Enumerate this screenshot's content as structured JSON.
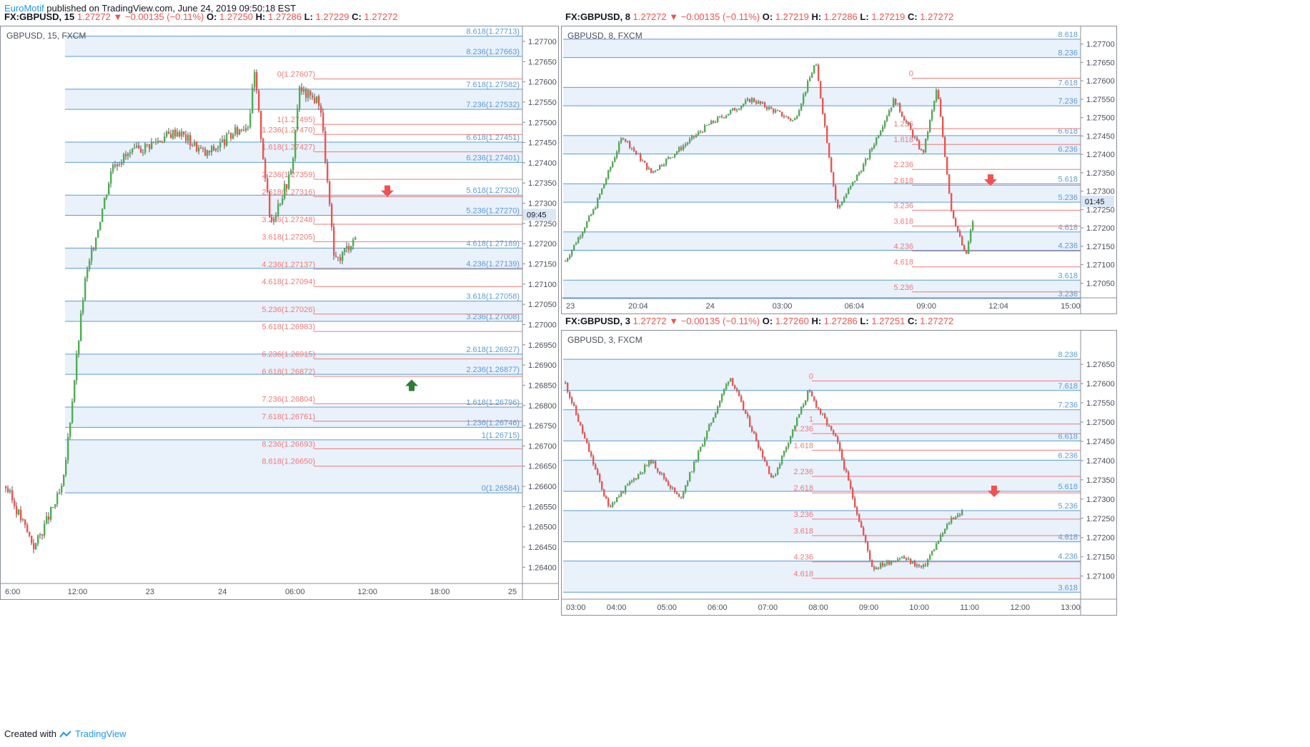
{
  "header": {
    "brand": "EuroMotif",
    "published": " published on TradingView.com, June 24, 2019 09:50:18 EST"
  },
  "footer": {
    "created_with": "Created with",
    "tradingview": "TradingView"
  },
  "colors": {
    "up": "#4caf50",
    "down": "#ef5350",
    "fib_blue": "#5b9bd5",
    "fib_red": "#ef7a78",
    "band": "#e9f1fb"
  },
  "charts": [
    {
      "id": "c15",
      "symbol": "FX:GBPUSD, 15",
      "price": "1.27272",
      "change": "−0.00135 (−0.11%)",
      "o": "1.27250",
      "h": "1.27286",
      "l": "1.27229",
      "c": "1.27272",
      "label": "GBPUSD, 15, FXCM",
      "countdown": "09:45",
      "ylim": [
        1.2636,
        1.2773
      ],
      "price_ticks": [
        "1.27700",
        "1.27650",
        "1.27600",
        "1.27550",
        "1.27500",
        "1.27450",
        "1.27400",
        "1.27350",
        "1.27300",
        "1.27250",
        "1.27200",
        "1.27150",
        "1.27100",
        "1.27050",
        "1.27000",
        "1.26950",
        "1.26900",
        "1.26850",
        "1.26800",
        "1.26750",
        "1.26700",
        "1.26650",
        "1.26600",
        "1.26550",
        "1.26500",
        "1.26450",
        "1.26400"
      ],
      "time_ticks": [
        "6:00",
        "12:00",
        "23",
        "24",
        "06:00",
        "12:00",
        "18:00",
        "25"
      ],
      "blue_levels": [
        {
          "ratio": "8.618",
          "price": 1.27713
        },
        {
          "ratio": "8.236",
          "price": 1.27663
        },
        {
          "ratio": "7.618",
          "price": 1.27582
        },
        {
          "ratio": "7.236",
          "price": 1.27532
        },
        {
          "ratio": "6.618",
          "price": 1.27451
        },
        {
          "ratio": "6.236",
          "price": 1.27401
        },
        {
          "ratio": "5.618",
          "price": 1.2732
        },
        {
          "ratio": "5.236",
          "price": 1.2727
        },
        {
          "ratio": "4.618",
          "price": 1.27189
        },
        {
          "ratio": "4.236",
          "price": 1.27139
        },
        {
          "ratio": "3.618",
          "price": 1.27058
        },
        {
          "ratio": "3.236",
          "price": 1.27008
        },
        {
          "ratio": "2.618",
          "price": 1.26927
        },
        {
          "ratio": "2.236",
          "price": 1.26877
        },
        {
          "ratio": "1.618",
          "price": 1.26796
        },
        {
          "ratio": "1.236",
          "price": 1.26746
        },
        {
          "ratio": "1",
          "price": 1.26715
        },
        {
          "ratio": "0",
          "price": 1.26584
        }
      ],
      "red_levels": [
        {
          "ratio": "0",
          "price": 1.27607
        },
        {
          "ratio": "1",
          "price": 1.27495
        },
        {
          "ratio": "1.236",
          "price": 1.2747
        },
        {
          "ratio": "1.618",
          "price": 1.27427
        },
        {
          "ratio": "2.236",
          "price": 1.27359
        },
        {
          "ratio": "2.618",
          "price": 1.27316
        },
        {
          "ratio": "3.236",
          "price": 1.27248
        },
        {
          "ratio": "3.618",
          "price": 1.27205
        },
        {
          "ratio": "4.236",
          "price": 1.27137
        },
        {
          "ratio": "4.618",
          "price": 1.27094
        },
        {
          "ratio": "5.236",
          "price": 1.27026
        },
        {
          "ratio": "5.618",
          "price": 1.26983
        },
        {
          "ratio": "6.236",
          "price": 1.26915
        },
        {
          "ratio": "6.618",
          "price": 1.26872
        },
        {
          "ratio": "7.236",
          "price": 1.26804
        },
        {
          "ratio": "7.618",
          "price": 1.26761
        },
        {
          "ratio": "8.236",
          "price": 1.26693
        },
        {
          "ratio": "8.618",
          "price": 1.2665
        }
      ],
      "arrows": [
        {
          "dir": "down",
          "price": 1.2733
        },
        {
          "dir": "up",
          "price": 1.2685
        }
      ]
    },
    {
      "id": "c8",
      "symbol": "FX:GBPUSD, 8",
      "price": "1.27272",
      "change": "−0.00135 (−0.11%)",
      "o": "1.27219",
      "h": "1.27286",
      "l": "1.27219",
      "c": "1.27272",
      "label": "GBPUSD, 8, FXCM",
      "countdown": "01:45",
      "ylim": [
        1.2701,
        1.2774
      ],
      "price_ticks": [
        "1.27700",
        "1.27650",
        "1.27600",
        "1.27550",
        "1.27500",
        "1.27450",
        "1.27400",
        "1.27350",
        "1.27300",
        "1.27250",
        "1.27200",
        "1.27150",
        "1.27100",
        "1.27050"
      ],
      "time_ticks": [
        "23",
        "20:04",
        "24",
        "03:00",
        "06:04",
        "09:00",
        "12:04",
        "15:00"
      ],
      "blue_levels": [
        {
          "ratio": "8.618",
          "price": 1.27713
        },
        {
          "ratio": "8.236",
          "price": 1.27663
        },
        {
          "ratio": "7.618",
          "price": 1.27582
        },
        {
          "ratio": "7.236",
          "price": 1.27532
        },
        {
          "ratio": "6.618",
          "price": 1.27451
        },
        {
          "ratio": "6.236",
          "price": 1.27401
        },
        {
          "ratio": "5.618",
          "price": 1.2732
        },
        {
          "ratio": "5.236",
          "price": 1.2727
        },
        {
          "ratio": "4.618",
          "price": 1.27189
        },
        {
          "ratio": "4.236",
          "price": 1.27139
        },
        {
          "ratio": "3.618",
          "price": 1.27058
        },
        {
          "ratio": "3.236",
          "price": 1.27008
        }
      ],
      "red_levels": [
        {
          "ratio": "0",
          "price": 1.27607
        },
        {
          "ratio": "1.236",
          "price": 1.2747
        },
        {
          "ratio": "1.618",
          "price": 1.27427
        },
        {
          "ratio": "2.236",
          "price": 1.27359
        },
        {
          "ratio": "2.618",
          "price": 1.27316
        },
        {
          "ratio": "3.236",
          "price": 1.27248
        },
        {
          "ratio": "3.618",
          "price": 1.27205
        },
        {
          "ratio": "4.236",
          "price": 1.27137
        },
        {
          "ratio": "4.618",
          "price": 1.27094
        },
        {
          "ratio": "5.236",
          "price": 1.27026
        }
      ],
      "arrows": [
        {
          "dir": "down",
          "price": 1.2733
        }
      ]
    },
    {
      "id": "c3",
      "symbol": "FX:GBPUSD, 3",
      "price": "1.27272",
      "change": "−0.00135 (−0.11%)",
      "o": "1.27260",
      "h": "1.27286",
      "l": "1.27251",
      "c": "1.27272",
      "label": "GBPUSD, 3, FXCM",
      "countdown": "",
      "ylim": [
        1.2704,
        1.2773
      ],
      "price_ticks": [
        "1.27650",
        "1.27600",
        "1.27550",
        "1.27500",
        "1.27450",
        "1.27400",
        "1.27350",
        "1.27300",
        "1.27250",
        "1.27200",
        "1.27150",
        "1.27100"
      ],
      "time_ticks": [
        "03:00",
        "04:00",
        "05:00",
        "06:00",
        "07:00",
        "08:00",
        "09:00",
        "10:00",
        "11:00",
        "12:00",
        "13:00"
      ],
      "blue_levels": [
        {
          "ratio": "8.236",
          "price": 1.27663
        },
        {
          "ratio": "7.618",
          "price": 1.27582
        },
        {
          "ratio": "7.236",
          "price": 1.27532
        },
        {
          "ratio": "6.618",
          "price": 1.27451
        },
        {
          "ratio": "6.236",
          "price": 1.27401
        },
        {
          "ratio": "5.618",
          "price": 1.2732
        },
        {
          "ratio": "5.236",
          "price": 1.2727
        },
        {
          "ratio": "4.618",
          "price": 1.27189
        },
        {
          "ratio": "4.236",
          "price": 1.27139
        },
        {
          "ratio": "3.618",
          "price": 1.27058
        }
      ],
      "red_levels": [
        {
          "ratio": "0",
          "price": 1.27607
        },
        {
          "ratio": "1",
          "price": 1.27495
        },
        {
          "ratio": "1.236",
          "price": 1.2747
        },
        {
          "ratio": "1.618",
          "price": 1.27427
        },
        {
          "ratio": "2.236",
          "price": 1.27359
        },
        {
          "ratio": "2.618",
          "price": 1.27316
        },
        {
          "ratio": "3.236",
          "price": 1.27248
        },
        {
          "ratio": "3.618",
          "price": 1.27205
        },
        {
          "ratio": "4.236",
          "price": 1.27137
        },
        {
          "ratio": "4.618",
          "price": 1.27094
        }
      ],
      "arrows": [
        {
          "dir": "down",
          "price": 1.2732
        }
      ]
    }
  ]
}
